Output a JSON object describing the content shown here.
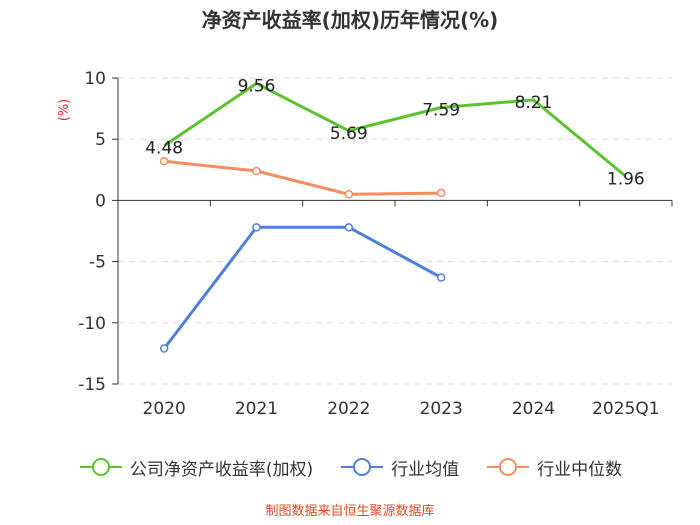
{
  "chart_data": {
    "type": "line",
    "title": "净资产收益率(加权)历年情况(%)",
    "ylabel": "(%)",
    "categories": [
      "2020",
      "2021",
      "2022",
      "2023",
      "2024",
      "2025Q1"
    ],
    "ylim": [
      -15,
      10
    ],
    "yticks": [
      10,
      5,
      0,
      -5,
      -10,
      -15
    ],
    "grid": true,
    "legend_position": "bottom",
    "series": [
      {
        "name": "公司净资产收益率(加权)",
        "color": "#5ac42e",
        "values": [
          4.48,
          9.56,
          5.69,
          7.59,
          8.21,
          1.96
        ],
        "labels": [
          "4.48",
          "9.56",
          "5.69",
          "7.59",
          "8.21",
          "1.96"
        ],
        "show_markers": false
      },
      {
        "name": "行业均值",
        "color": "#4e7fe0",
        "values": [
          -12.1,
          -2.2,
          -2.2,
          -6.3,
          null,
          null
        ],
        "show_markers": true
      },
      {
        "name": "行业中位数",
        "color": "#f58d5c",
        "values": [
          3.2,
          2.4,
          0.5,
          0.6,
          null,
          null
        ],
        "show_markers": true
      }
    ]
  },
  "source_note": "制图数据来自恒生聚源数据库"
}
